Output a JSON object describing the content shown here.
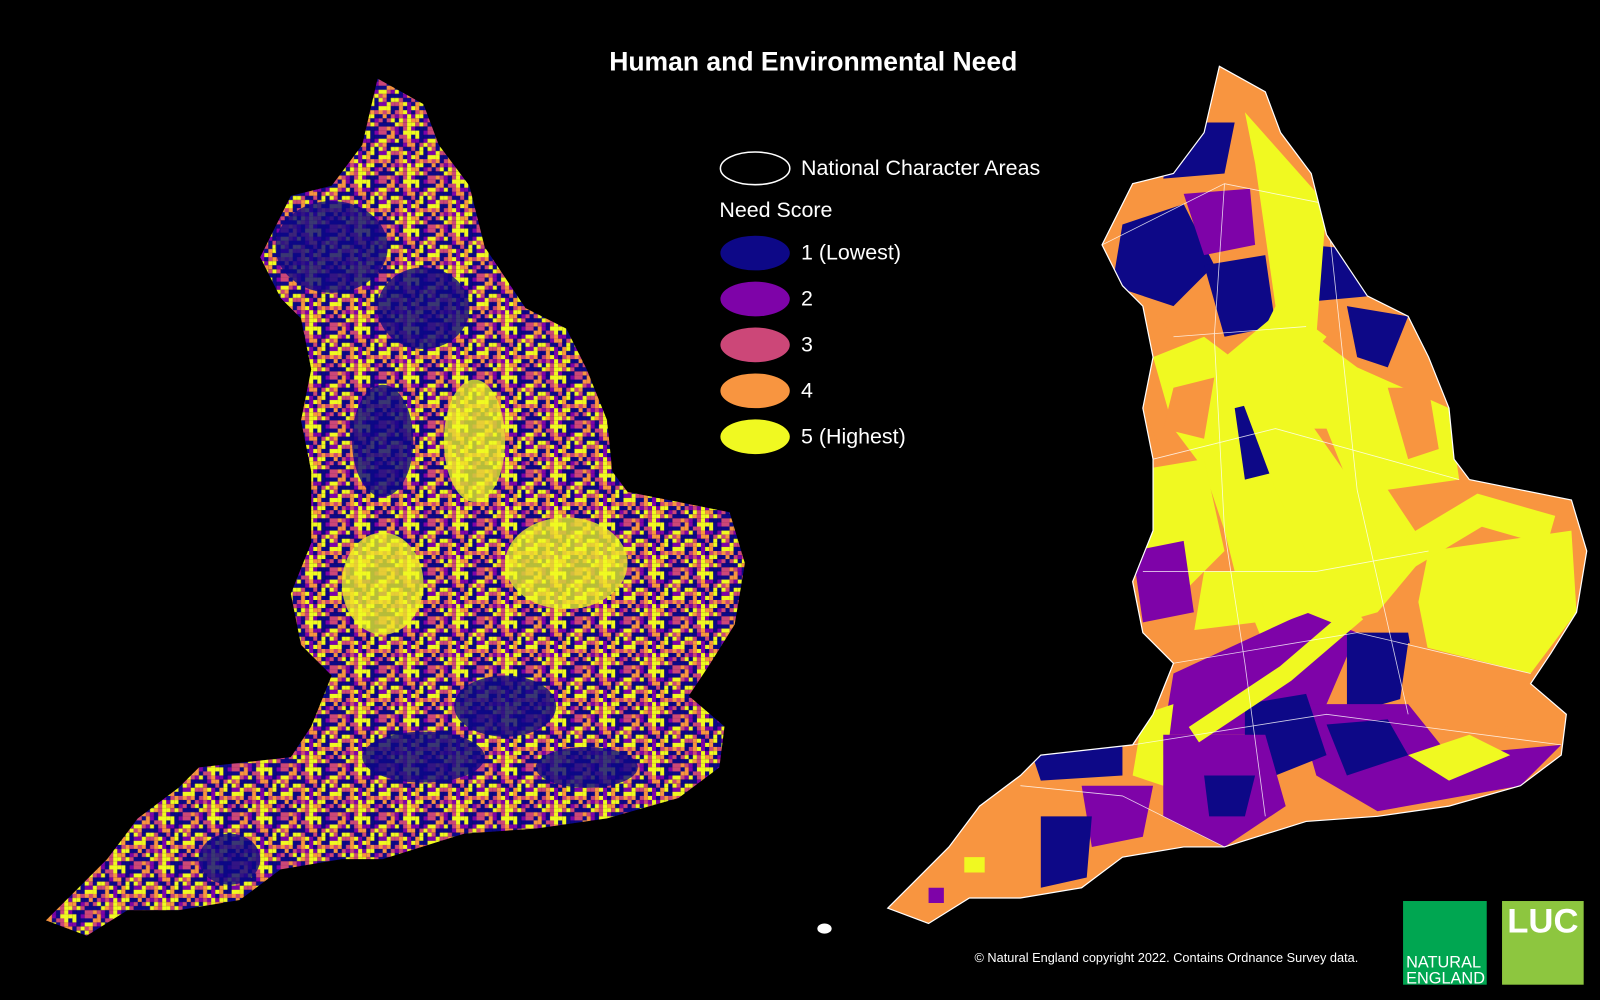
{
  "title": "Human and Environmental Need",
  "legend": {
    "outline_label": "National Character Areas",
    "heading": "Need Score",
    "items": [
      {
        "label": "1 (Lowest)",
        "color": "#0d0887"
      },
      {
        "label": "2",
        "color": "#7e03a8"
      },
      {
        "label": "3",
        "color": "#cc4778"
      },
      {
        "label": "4",
        "color": "#f89540"
      },
      {
        "label": "5 (Highest)",
        "color": "#f0f921"
      }
    ]
  },
  "credit": "© Natural England copyright 2022. Contains Ordnance Survey data.",
  "logos": {
    "natural_england": [
      "NATURAL",
      "ENGLAND"
    ],
    "luc": "LUC"
  }
}
